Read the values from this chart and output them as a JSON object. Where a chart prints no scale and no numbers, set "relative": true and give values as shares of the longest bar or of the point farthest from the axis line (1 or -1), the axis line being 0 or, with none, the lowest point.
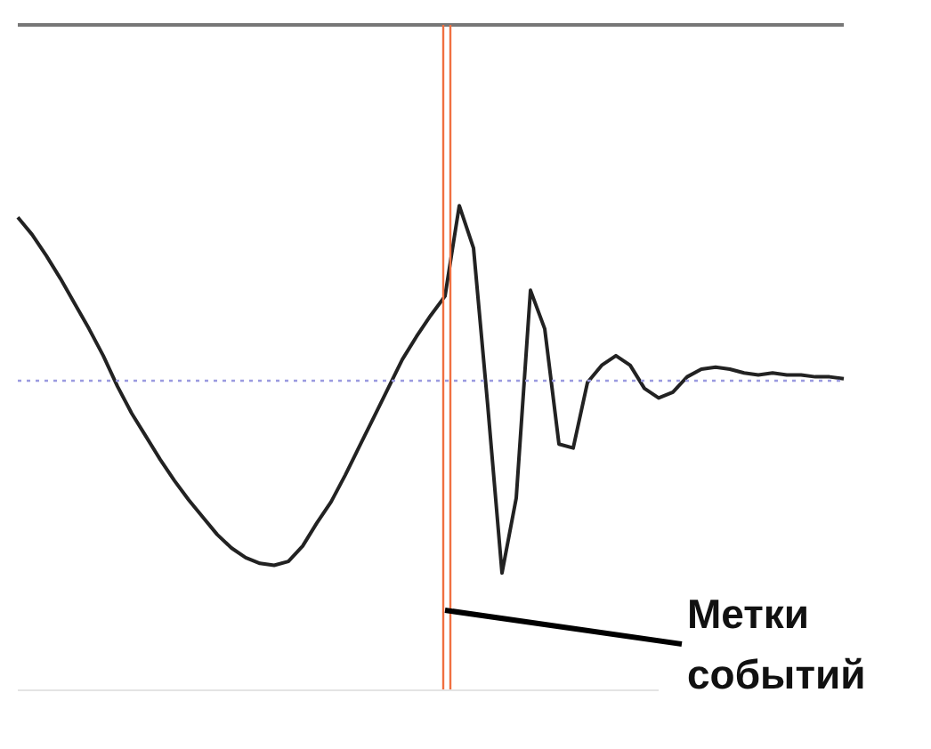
{
  "chart_data": {
    "type": "line",
    "relative": true,
    "color": "#222222",
    "marker": "none",
    "legend": false,
    "categories": [
      null,
      null,
      null,
      null,
      null,
      null,
      null,
      null,
      null,
      null,
      null,
      null,
      null,
      null,
      null,
      null,
      null,
      null,
      null,
      null,
      null,
      null,
      null,
      null,
      null,
      null,
      null,
      null,
      null,
      null,
      null,
      null,
      null,
      null,
      null,
      null,
      null,
      null,
      null,
      null,
      null,
      null,
      null,
      null,
      null,
      null,
      null,
      null,
      null,
      null,
      null,
      null,
      null,
      null,
      null,
      null,
      null,
      null,
      null
    ],
    "values": [
      0.85,
      0.76,
      0.65,
      0.53,
      0.4,
      0.27,
      0.13,
      -0.03,
      -0.17,
      -0.29,
      -0.41,
      -0.52,
      -0.62,
      -0.71,
      -0.8,
      -0.87,
      -0.92,
      -0.95,
      -0.96,
      -0.94,
      -0.86,
      -0.74,
      -0.63,
      -0.49,
      -0.34,
      -0.19,
      -0.04,
      0.11,
      0.23,
      0.34,
      0.44,
      0.91,
      0.69,
      -0.13,
      -1,
      -0.61,
      0.47,
      0.27,
      -0.33,
      -0.35,
      -0.01,
      0.08,
      0.13,
      0.08,
      -0.04,
      -0.09,
      -0.06,
      0.02,
      0.06,
      0.07,
      0.06,
      0.04,
      0.03,
      0.04,
      0.03,
      0.03,
      0.02,
      0.02,
      0.01
    ],
    "ref_lines": [
      {
        "axis": "y",
        "value": 0,
        "color": "#9a9ae0",
        "line_style": "dotted"
      }
    ],
    "annotations": [
      "Метки событий"
    ]
  }
}
